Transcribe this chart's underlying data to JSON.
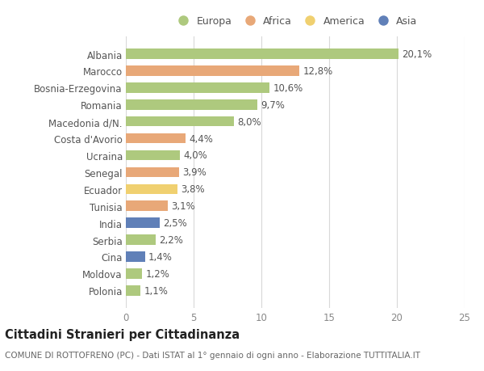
{
  "countries": [
    "Albania",
    "Marocco",
    "Bosnia-Erzegovina",
    "Romania",
    "Macedonia d/N.",
    "Costa d'Avorio",
    "Ucraina",
    "Senegal",
    "Ecuador",
    "Tunisia",
    "India",
    "Serbia",
    "Cina",
    "Moldova",
    "Polonia"
  ],
  "values": [
    20.1,
    12.8,
    10.6,
    9.7,
    8.0,
    4.4,
    4.0,
    3.9,
    3.8,
    3.1,
    2.5,
    2.2,
    1.4,
    1.2,
    1.1
  ],
  "labels": [
    "20,1%",
    "12,8%",
    "10,6%",
    "9,7%",
    "8,0%",
    "4,4%",
    "4,0%",
    "3,9%",
    "3,8%",
    "3,1%",
    "2,5%",
    "2,2%",
    "1,4%",
    "1,2%",
    "1,1%"
  ],
  "continents": [
    "Europa",
    "Africa",
    "Europa",
    "Europa",
    "Europa",
    "Africa",
    "Europa",
    "Africa",
    "America",
    "Africa",
    "Asia",
    "Europa",
    "Asia",
    "Europa",
    "Europa"
  ],
  "colors": {
    "Europa": "#aec97e",
    "Africa": "#e8a878",
    "America": "#f0d070",
    "Asia": "#6080b8"
  },
  "legend_order": [
    "Europa",
    "Africa",
    "America",
    "Asia"
  ],
  "xlim": [
    0,
    25
  ],
  "xticks": [
    0,
    5,
    10,
    15,
    20,
    25
  ],
  "title": "Cittadini Stranieri per Cittadinanza",
  "subtitle": "COMUNE DI ROTTOFRENO (PC) - Dati ISTAT al 1° gennaio di ogni anno - Elaborazione TUTTITALIA.IT",
  "bg_color": "#ffffff",
  "grid_color": "#d8d8d8",
  "bar_height": 0.6,
  "label_fontsize": 8.5,
  "tick_fontsize": 8.5,
  "title_fontsize": 10.5,
  "subtitle_fontsize": 7.5
}
